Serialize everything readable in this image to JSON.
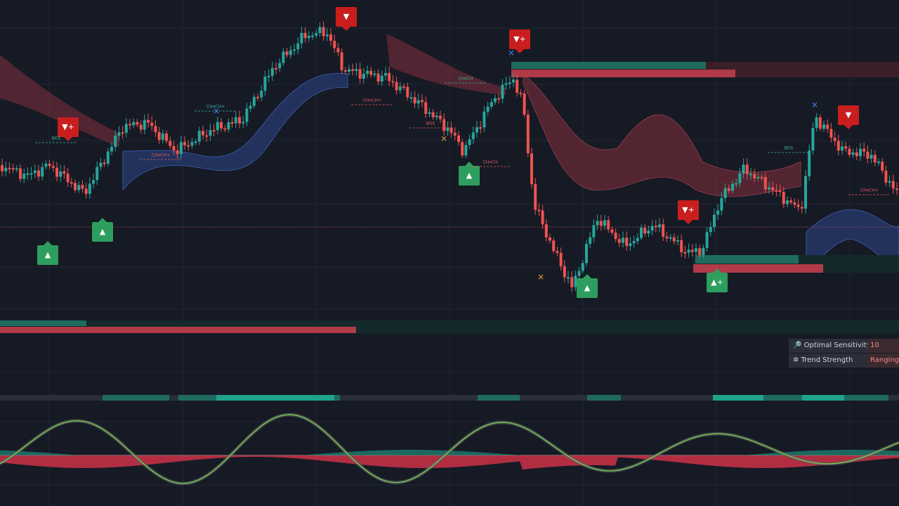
{
  "signals": [
    "▼",
    "▼+",
    "▼+",
    "▼+",
    "▼",
    "▲",
    "▲",
    "▲",
    "▲",
    "▲+"
  ],
  "structure_labels": [
    "CHoCH+",
    "CHoCH+",
    "BOS",
    "CHoCH",
    "CHoCH+",
    "BOS",
    "CHoCH",
    "BOS",
    "CHoCH+"
  ],
  "panel": {
    "rows": [
      [
        "Optimal Sensitivity",
        "10"
      ],
      [
        "Trend Strength",
        "Ranging ("
      ]
    ]
  }
}
